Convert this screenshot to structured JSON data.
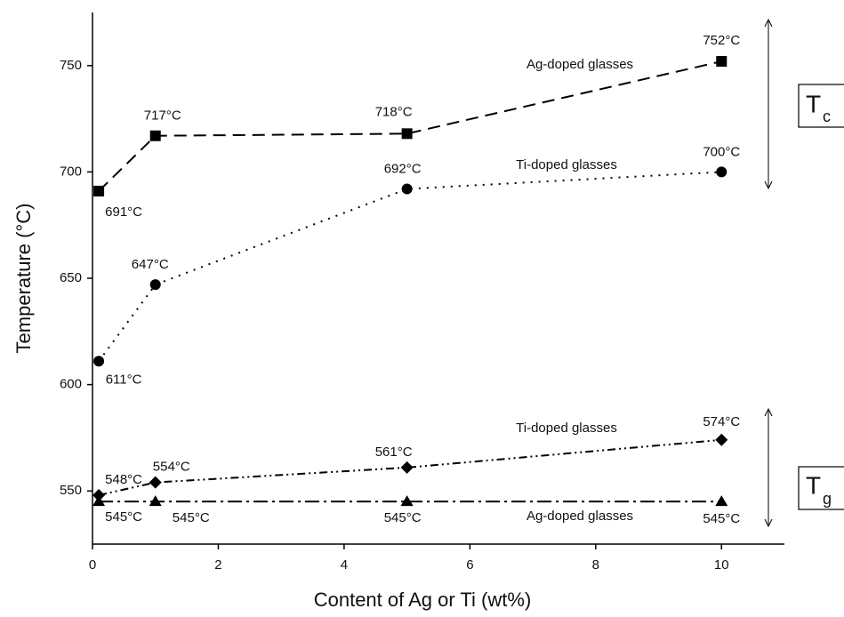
{
  "chart_data": {
    "type": "line",
    "x_label": "Content of Ag or Ti (wt%)",
    "y_label": "Temperature (°C)",
    "xlim": [
      0,
      11
    ],
    "xticks": [
      0,
      2,
      4,
      6,
      8,
      10
    ],
    "ylim": [
      525,
      775
    ],
    "yticks": [
      550,
      600,
      650,
      700,
      750
    ],
    "annotations": [
      {
        "main": "T",
        "sub": "c"
      },
      {
        "main": "T",
        "sub": "g"
      }
    ],
    "series": [
      {
        "name": "Ag-doped glasses",
        "color": "#000000",
        "marker": "square",
        "x": [
          0.1,
          1,
          5,
          10
        ],
        "values": [
          691,
          717,
          718,
          752
        ],
        "value_labels": [
          "691°C",
          "717°C",
          "718°C",
          "752°C"
        ]
      },
      {
        "name": "Ti-doped glasses",
        "color": "#000000",
        "marker": "circle",
        "x": [
          0.1,
          1,
          5,
          10
        ],
        "values": [
          611,
          647,
          692,
          700
        ],
        "value_labels": [
          "611°C",
          "647°C",
          "692°C",
          "700°C"
        ]
      },
      {
        "name": "Ti-doped glasses",
        "color": "#000000",
        "marker": "diamond",
        "x": [
          0.1,
          1,
          5,
          10
        ],
        "values": [
          548,
          554,
          561,
          574
        ],
        "value_labels": [
          "548°C",
          "554°C",
          "561°C",
          "574°C"
        ]
      },
      {
        "name": "Ag-doped glasses",
        "color": "#000000",
        "marker": "triangle",
        "x": [
          0.1,
          1,
          5,
          10
        ],
        "values": [
          545,
          545,
          545,
          545
        ],
        "value_labels": [
          "545°C",
          "545°C",
          "545°C",
          "545°C"
        ]
      }
    ]
  }
}
